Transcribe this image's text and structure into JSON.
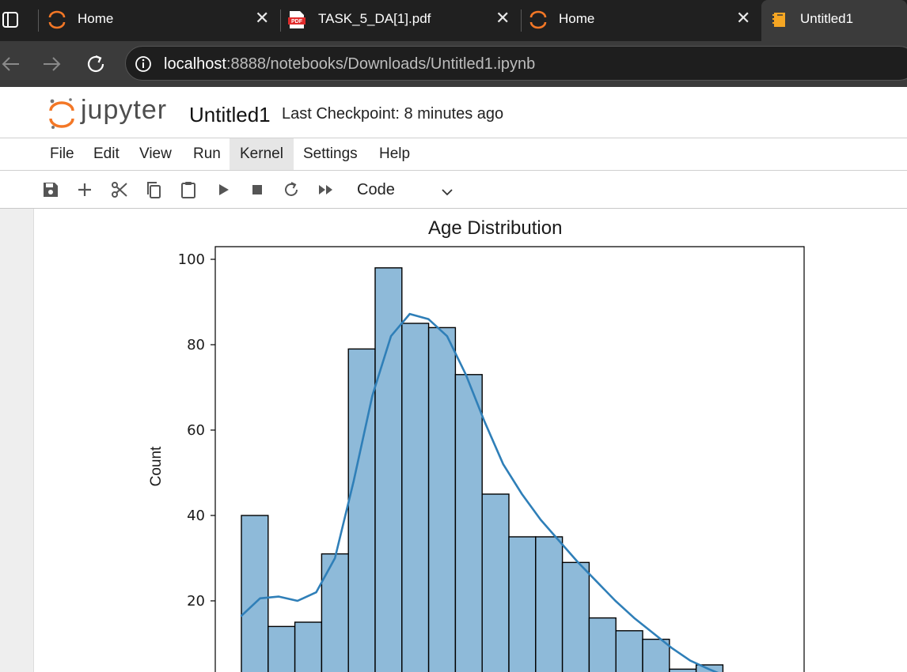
{
  "browser": {
    "tabs": [
      {
        "title": "Home",
        "icon": "jupyter-logo-icon",
        "active": false
      },
      {
        "title": "TASK_5_DA[1].pdf",
        "icon": "pdf-icon",
        "active": false
      },
      {
        "title": "Home",
        "icon": "jupyter-logo-icon",
        "active": false
      },
      {
        "title": "Untitled1",
        "icon": "notebook-icon",
        "active": true
      }
    ],
    "url_host": "localhost",
    "url_rest": ":8888/notebooks/Downloads/Untitled1.ipynb"
  },
  "jupyter": {
    "logo_text": "jupyter",
    "notebook_name": "Untitled1",
    "checkpoint": "Last Checkpoint: 8 minutes ago",
    "menu": [
      "File",
      "Edit",
      "View",
      "Run",
      "Kernel",
      "Settings",
      "Help"
    ],
    "active_menu": "Kernel",
    "cell_type": "Code",
    "toolbar_icons": [
      "save-icon",
      "add-cell-icon",
      "cut-icon",
      "copy-icon",
      "paste-icon",
      "run-icon",
      "stop-icon",
      "restart-icon",
      "run-all-icon"
    ]
  },
  "colors": {
    "bar_fill": "#8ebad9",
    "bar_edge": "#000000",
    "kde_line": "#2f7fb8",
    "jupyter_orange": "#f37726"
  },
  "chart_data": {
    "type": "bar",
    "title": "Age Distribution",
    "ylabel": "Count",
    "yticks": [
      20,
      40,
      60,
      80,
      100
    ],
    "ylim": [
      0,
      103
    ],
    "values": [
      40,
      14,
      15,
      31,
      79,
      98,
      85,
      84,
      73,
      45,
      35,
      35,
      29,
      16,
      13,
      11,
      4,
      5
    ],
    "kde": [
      16.5,
      20.6,
      21.0,
      20.0,
      22.0,
      30.0,
      48.0,
      68.0,
      82.0,
      87.2,
      86.0,
      82.0,
      73.0,
      62.0,
      52.0,
      45.0,
      39.0,
      34.0,
      29.0,
      24.5,
      20.0,
      16.0,
      12.5,
      9.0,
      6.0,
      4.0,
      2.2
    ]
  }
}
